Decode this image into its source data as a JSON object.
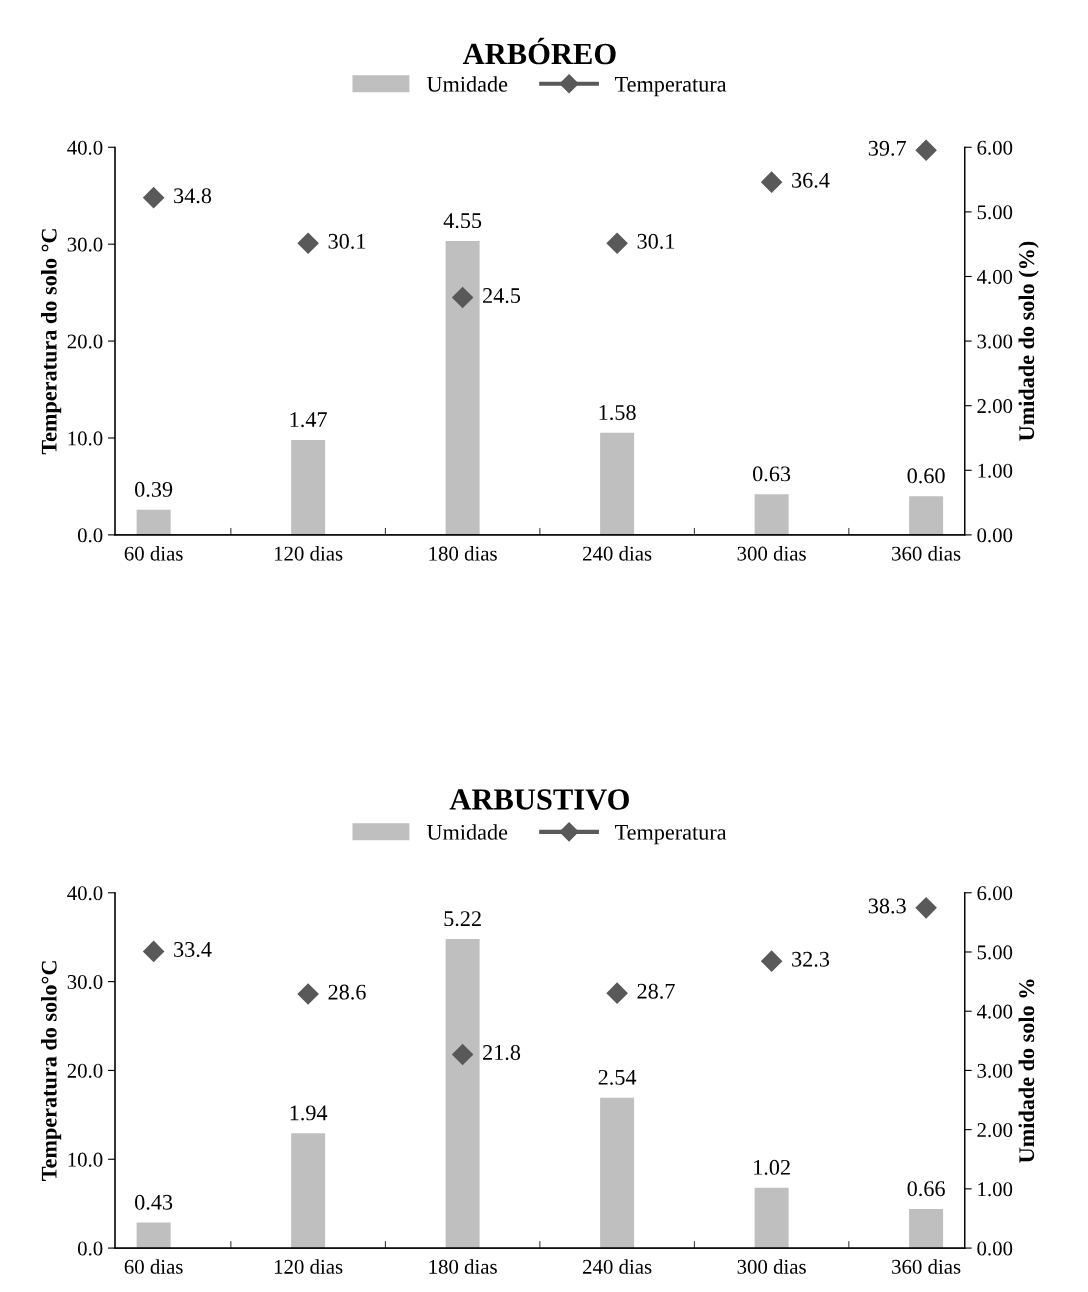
{
  "chart_data": [
    {
      "type": "bar",
      "title": "ARBÓREO",
      "ylabel": "Temperatura do solo °C",
      "y2label": "Umidade do solo (%)",
      "categories": [
        "60 dias",
        "120 dias",
        "180 dias",
        "240 dias",
        "300 dias",
        "360 dias"
      ],
      "series": [
        {
          "name": "Umidade",
          "axis": "y2",
          "color": "#bfbfbf",
          "values": [
            0.39,
            1.47,
            4.55,
            1.58,
            0.63,
            0.6
          ],
          "value_labels": [
            "0.39",
            "1.47",
            "4.55",
            "1.58",
            "0.63",
            "0.60"
          ]
        },
        {
          "name": "Temperatura",
          "type": "scatter",
          "axis": "y",
          "color": "#595959",
          "values": [
            34.8,
            30.1,
            24.5,
            30.1,
            36.4,
            39.7
          ],
          "value_labels": [
            "34.8",
            "30.1",
            "24.5",
            "30.1",
            "36.4",
            "39.7"
          ]
        }
      ],
      "ylim": [
        0,
        40
      ],
      "yticks": [
        {
          "value": 0,
          "label": "0.0"
        },
        {
          "value": 10,
          "label": "10.0"
        },
        {
          "value": 20,
          "label": "20.0"
        },
        {
          "value": 30,
          "label": "30.0"
        },
        {
          "value": 40,
          "label": "40.0"
        }
      ],
      "y2lim": [
        0,
        6
      ],
      "y2ticks": [
        {
          "value": 0,
          "label": "0.00"
        },
        {
          "value": 1,
          "label": "1.00"
        },
        {
          "value": 2,
          "label": "2.00"
        },
        {
          "value": 3,
          "label": "3.00"
        },
        {
          "value": 4,
          "label": "4.00"
        },
        {
          "value": 5,
          "label": "5.00"
        },
        {
          "value": 6,
          "label": "6.00"
        }
      ],
      "legend": "top",
      "marker": "diamond"
    },
    {
      "type": "bar",
      "title": "ARBUSTIVO",
      "ylabel": "Temperatura do solo°C",
      "y2label": "Umidade do solo %",
      "categories": [
        "60 dias",
        "120 dias",
        "180 dias",
        "240 dias",
        "300 dias",
        "360 dias"
      ],
      "series": [
        {
          "name": "Umidade",
          "axis": "y2",
          "color": "#bfbfbf",
          "values": [
            0.43,
            1.94,
            5.22,
            2.54,
            1.02,
            0.66
          ],
          "value_labels": [
            "0.43",
            "1.94",
            "5.22",
            "2.54",
            "1.02",
            "0.66"
          ]
        },
        {
          "name": "Temperatura",
          "type": "scatter",
          "axis": "y",
          "color": "#595959",
          "values": [
            33.4,
            28.6,
            21.8,
            28.7,
            32.3,
            38.3
          ],
          "value_labels": [
            "33.4",
            "28.6",
            "21.8",
            "28.7",
            "32.3",
            "38.3"
          ]
        }
      ],
      "ylim": [
        0,
        40
      ],
      "yticks": [
        {
          "value": 0,
          "label": "0.0"
        },
        {
          "value": 10,
          "label": "10.0"
        },
        {
          "value": 20,
          "label": "20.0"
        },
        {
          "value": 30,
          "label": "30.0"
        },
        {
          "value": 40,
          "label": "40.0"
        }
      ],
      "y2lim": [
        0,
        6
      ],
      "y2ticks": [
        {
          "value": 0,
          "label": "0.00"
        },
        {
          "value": 1,
          "label": "1.00"
        },
        {
          "value": 2,
          "label": "2.00"
        },
        {
          "value": 3,
          "label": "3.00"
        },
        {
          "value": 4,
          "label": "4.00"
        },
        {
          "value": 5,
          "label": "5.00"
        },
        {
          "value": 6,
          "label": "6.00"
        }
      ],
      "legend": "top",
      "marker": "diamond"
    }
  ]
}
